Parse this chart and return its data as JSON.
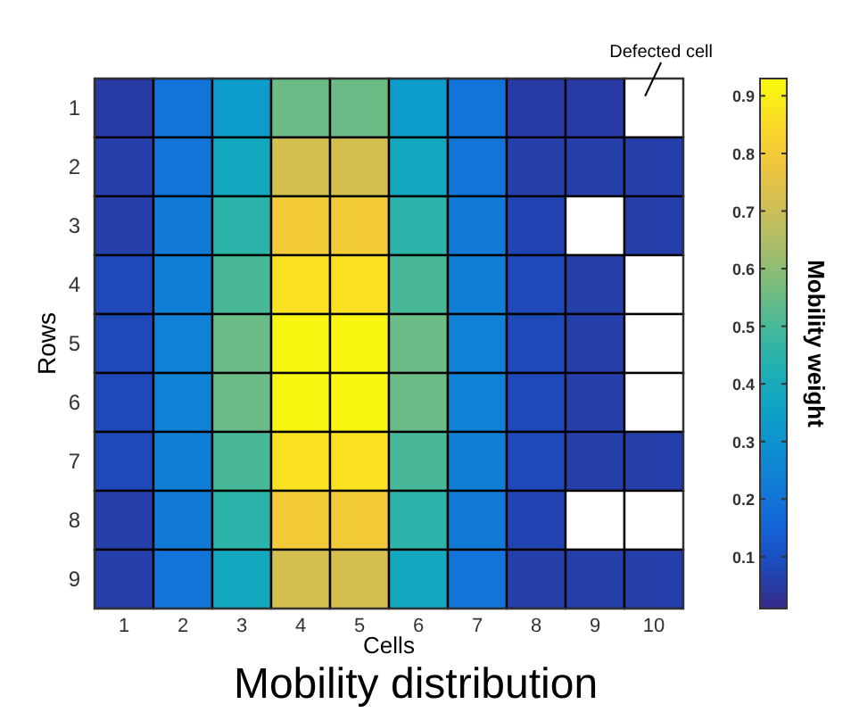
{
  "chart_data": {
    "type": "heatmap",
    "title": "Mobility distribution",
    "xlabel": "Cells",
    "ylabel": "Rows",
    "clabel": "Mobility weight",
    "categories": [
      "1",
      "2",
      "3",
      "4",
      "5",
      "6",
      "7",
      "8",
      "9",
      "10"
    ],
    "y_categories": [
      "1",
      "2",
      "3",
      "4",
      "5",
      "6",
      "7",
      "8",
      "9"
    ],
    "cells": [
      [
        0.05,
        0.2,
        0.33,
        0.55,
        0.55,
        0.33,
        0.2,
        0.05,
        0.05,
        null
      ],
      [
        0.06,
        0.2,
        0.38,
        0.72,
        0.72,
        0.38,
        0.2,
        0.06,
        0.06,
        0.06
      ],
      [
        0.06,
        0.22,
        0.45,
        0.8,
        0.8,
        0.45,
        0.22,
        0.07,
        null,
        0.06
      ],
      [
        0.08,
        0.23,
        0.5,
        0.87,
        0.87,
        0.5,
        0.23,
        0.08,
        0.06,
        null
      ],
      [
        0.08,
        0.24,
        0.55,
        0.92,
        0.92,
        0.55,
        0.24,
        0.08,
        0.06,
        null
      ],
      [
        0.08,
        0.24,
        0.55,
        0.92,
        0.92,
        0.55,
        0.24,
        0.08,
        0.06,
        null
      ],
      [
        0.08,
        0.23,
        0.5,
        0.87,
        0.87,
        0.5,
        0.23,
        0.08,
        0.06,
        0.06
      ],
      [
        0.06,
        0.22,
        0.45,
        0.8,
        0.8,
        0.45,
        0.22,
        0.07,
        null,
        null
      ],
      [
        0.06,
        0.2,
        0.38,
        0.72,
        0.72,
        0.38,
        0.2,
        0.06,
        0.06,
        0.06
      ]
    ],
    "clim": [
      0.01,
      0.93
    ],
    "cticks": [
      0.1,
      0.2,
      0.3,
      0.4,
      0.5,
      0.6,
      0.7,
      0.8,
      0.9
    ],
    "annotations": [
      "Defected cell"
    ]
  }
}
